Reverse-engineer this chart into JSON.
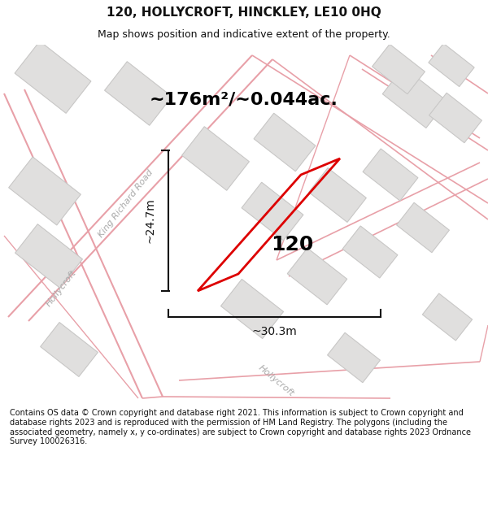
{
  "title": "120, HOLLYCROFT, HINCKLEY, LE10 0HQ",
  "subtitle": "Map shows position and indicative extent of the property.",
  "area_text": "~176m²/~0.044ac.",
  "label_120": "120",
  "dim_width": "~30.3m",
  "dim_height": "~24.7m",
  "footer": "Contains OS data © Crown copyright and database right 2021. This information is subject to Crown copyright and database rights 2023 and is reproduced with the permission of HM Land Registry. The polygons (including the associated geometry, namely x, y co-ordinates) are subject to Crown copyright and database rights 2023 Ordnance Survey 100026316.",
  "bg_color": "#ffffff",
  "map_bg": "#f2f1f0",
  "road_line_color": "#e8a0a8",
  "building_fill": "#e0dfde",
  "building_edge": "#c8c7c6",
  "plot_color": "#dd0000",
  "dim_color": "#111111",
  "title_color": "#111111",
  "footer_color": "#111111",
  "road_label_color": "#aaaaaa",
  "title_fontsize": 11,
  "subtitle_fontsize": 9,
  "area_fontsize": 16,
  "label_fontsize": 18,
  "dim_fontsize": 10,
  "road_label_fontsize": 8,
  "footer_fontsize": 7
}
